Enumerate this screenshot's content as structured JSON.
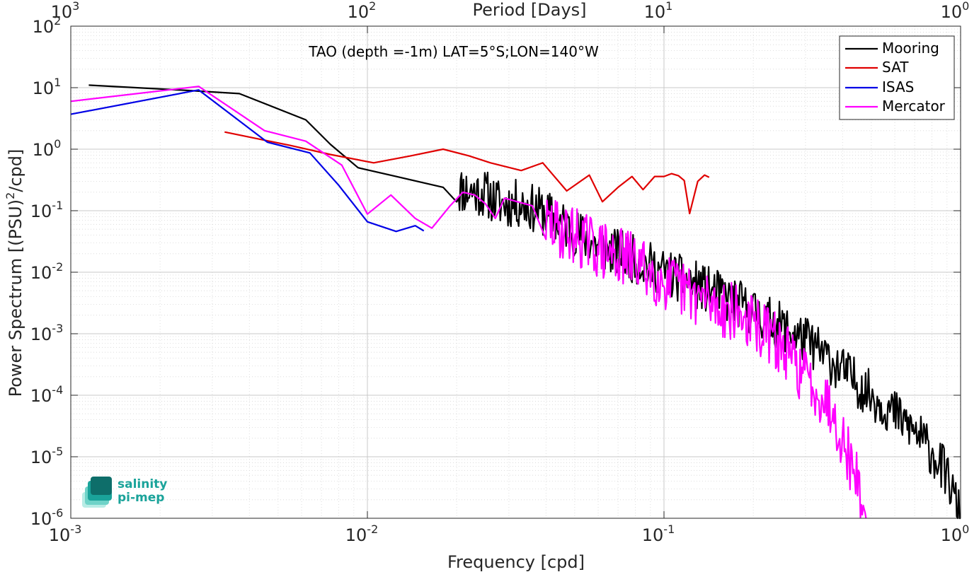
{
  "chart_data": {
    "type": "line",
    "title": "TAO (depth =-1m) LAT=5°S;LON=140°W",
    "xlabel": "Frequency [cpd]",
    "ylabel": "Power Spectrum [(PSU)",
    "ylabel_sup": "2",
    "ylabel_tail": "/cpd]",
    "top_xlabel": "Period [Days]",
    "xscale": "log",
    "yscale": "log",
    "xlim": [
      0.001,
      1
    ],
    "ylim": [
      1e-06,
      100
    ],
    "grid": true,
    "minor_grid": true,
    "legend_position": "top-right",
    "x_ticks": [
      {
        "base": "10",
        "exp": "-3",
        "value": 0.001
      },
      {
        "base": "10",
        "exp": "-2",
        "value": 0.01
      },
      {
        "base": "10",
        "exp": "-1",
        "value": 0.1
      },
      {
        "base": "10",
        "exp": "0",
        "value": 1
      }
    ],
    "top_ticks": [
      {
        "base": "10",
        "exp": "3",
        "value": 0.001
      },
      {
        "base": "10",
        "exp": "2",
        "value": 0.01
      },
      {
        "base": "10",
        "exp": "1",
        "value": 0.1
      },
      {
        "base": "10",
        "exp": "0",
        "value": 1
      }
    ],
    "y_ticks": [
      {
        "base": "10",
        "exp": "2",
        "value": 100
      },
      {
        "base": "10",
        "exp": "1",
        "value": 10
      },
      {
        "base": "10",
        "exp": "0",
        "value": 1
      },
      {
        "base": "10",
        "exp": "-1",
        "value": 0.1
      },
      {
        "base": "10",
        "exp": "-2",
        "value": 0.01
      },
      {
        "base": "10",
        "exp": "-3",
        "value": 0.001
      },
      {
        "base": "10",
        "exp": "-4",
        "value": 0.0001
      },
      {
        "base": "10",
        "exp": "-5",
        "value": 1e-05
      },
      {
        "base": "10",
        "exp": "-6",
        "value": 1e-06
      }
    ],
    "series": [
      {
        "name": "Mooring",
        "color": "#000000",
        "noisy_tail": {
          "from_x": 0.02,
          "to_x": 1.0,
          "n": 520,
          "end_y": 1e-06,
          "amp": 0.18,
          "seed": 11
        },
        "points": [
          [
            0.00115,
            11
          ],
          [
            0.0025,
            9
          ],
          [
            0.0037,
            8
          ],
          [
            0.0062,
            3
          ],
          [
            0.0075,
            1.2
          ],
          [
            0.0093,
            0.5
          ],
          [
            0.0125,
            0.36
          ],
          [
            0.018,
            0.24
          ],
          [
            0.022,
            0.21
          ],
          [
            0.025,
            0.19
          ],
          [
            0.028,
            0.13
          ],
          [
            0.033,
            0.13
          ],
          [
            0.04,
            0.09
          ],
          [
            0.05,
            0.045
          ],
          [
            0.062,
            0.025
          ],
          [
            0.08,
            0.016
          ],
          [
            0.1,
            0.01
          ],
          [
            0.13,
            0.006
          ],
          [
            0.18,
            0.003
          ],
          [
            0.23,
            0.0016
          ],
          [
            0.3,
            0.0008
          ],
          [
            0.4,
            0.00025
          ],
          [
            0.5,
            0.0001
          ],
          [
            0.6,
            5e-05
          ],
          [
            0.7,
            2.6e-05
          ],
          [
            0.8,
            1.2e-05
          ],
          [
            0.9,
            5e-06
          ],
          [
            1.0,
            1e-06
          ]
        ]
      },
      {
        "name": "SAT",
        "color": "#e00000",
        "points": [
          [
            0.0033,
            1.9
          ],
          [
            0.0042,
            1.5
          ],
          [
            0.0055,
            1.15
          ],
          [
            0.0075,
            0.82
          ],
          [
            0.0105,
            0.6
          ],
          [
            0.014,
            0.78
          ],
          [
            0.018,
            1.0
          ],
          [
            0.022,
            0.78
          ],
          [
            0.026,
            0.6
          ],
          [
            0.033,
            0.45
          ],
          [
            0.039,
            0.6
          ],
          [
            0.047,
            0.21
          ],
          [
            0.056,
            0.38
          ],
          [
            0.062,
            0.14
          ],
          [
            0.07,
            0.24
          ],
          [
            0.078,
            0.36
          ],
          [
            0.085,
            0.22
          ],
          [
            0.093,
            0.36
          ],
          [
            0.1,
            0.36
          ],
          [
            0.106,
            0.4
          ],
          [
            0.112,
            0.37
          ],
          [
            0.117,
            0.31
          ],
          [
            0.122,
            0.09
          ],
          [
            0.13,
            0.3
          ],
          [
            0.137,
            0.38
          ],
          [
            0.142,
            0.35
          ]
        ]
      },
      {
        "name": "ISAS",
        "color": "#0000e6",
        "points": [
          [
            0.001,
            3.7
          ],
          [
            0.0027,
            9.2
          ],
          [
            0.0046,
            1.3
          ],
          [
            0.0064,
            0.87
          ],
          [
            0.008,
            0.26
          ],
          [
            0.01,
            0.066
          ],
          [
            0.0125,
            0.046
          ],
          [
            0.0145,
            0.057
          ],
          [
            0.0155,
            0.047
          ]
        ]
      },
      {
        "name": "Mercator",
        "color": "#ff00ff",
        "noisy_tail": {
          "from_x": 0.04,
          "to_x": 0.48,
          "n": 340,
          "end_y": 1e-06,
          "amp": 0.22,
          "seed": 29
        },
        "points": [
          [
            0.001,
            6
          ],
          [
            0.0027,
            10.5
          ],
          [
            0.0045,
            2.0
          ],
          [
            0.0062,
            1.35
          ],
          [
            0.0082,
            0.55
          ],
          [
            0.01,
            0.088
          ],
          [
            0.012,
            0.18
          ],
          [
            0.0145,
            0.075
          ],
          [
            0.0165,
            0.052
          ],
          [
            0.019,
            0.12
          ],
          [
            0.021,
            0.2
          ],
          [
            0.023,
            0.18
          ],
          [
            0.025,
            0.13
          ],
          [
            0.027,
            0.075
          ],
          [
            0.029,
            0.16
          ],
          [
            0.032,
            0.14
          ],
          [
            0.036,
            0.12
          ],
          [
            0.04,
            0.06
          ],
          [
            0.05,
            0.04
          ],
          [
            0.062,
            0.022
          ],
          [
            0.08,
            0.015
          ],
          [
            0.1,
            0.007
          ],
          [
            0.13,
            0.004
          ],
          [
            0.18,
            0.002
          ],
          [
            0.23,
            0.0009
          ],
          [
            0.28,
            0.0003
          ],
          [
            0.33,
            0.00012
          ],
          [
            0.37,
            6e-05
          ],
          [
            0.42,
            1e-05
          ],
          [
            0.45,
            4e-06
          ],
          [
            0.48,
            1e-06
          ]
        ]
      }
    ]
  },
  "logo": {
    "line1": "salinity",
    "line2": "pi-mep",
    "colors": [
      "#0e6e6a",
      "#1aa39a",
      "#6fd3c8",
      "#b8ece5"
    ]
  }
}
